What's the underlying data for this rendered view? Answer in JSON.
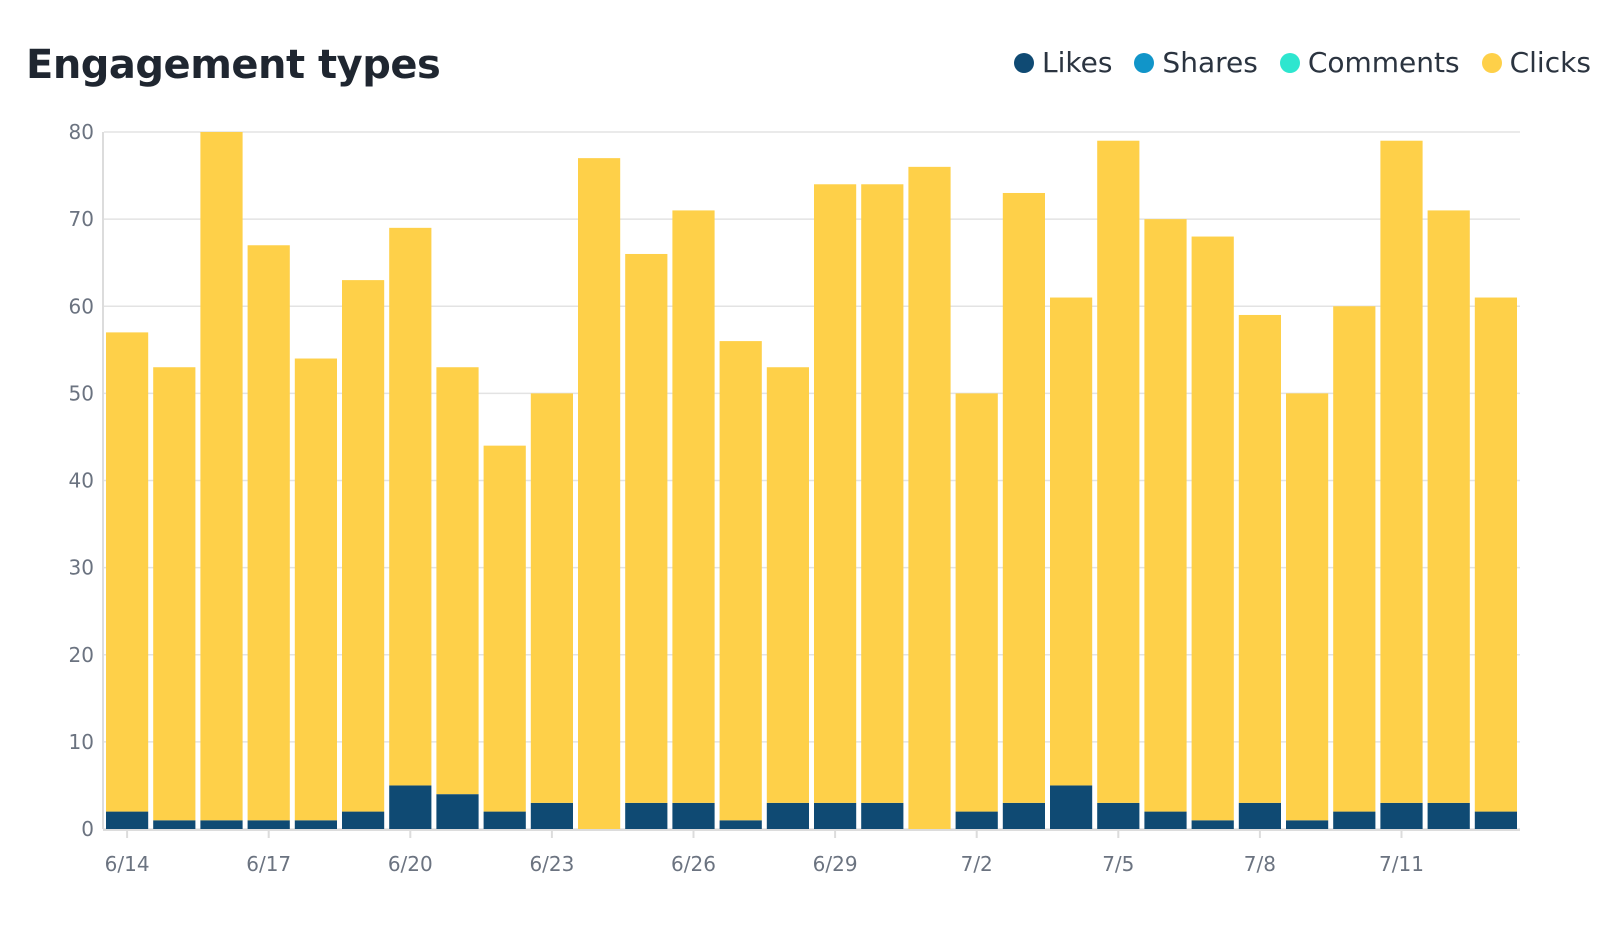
{
  "chart_data": {
    "type": "bar",
    "stacked": true,
    "title": "Engagement types",
    "xlabel": "",
    "ylabel": "",
    "ylim": [
      0,
      80
    ],
    "yticks": [
      0,
      10,
      20,
      30,
      40,
      50,
      60,
      70,
      80
    ],
    "grid": true,
    "legend_position": "top-right",
    "categories": [
      "6/14",
      "6/15",
      "6/16",
      "6/17",
      "6/18",
      "6/19",
      "6/20",
      "6/21",
      "6/22",
      "6/23",
      "6/24",
      "6/25",
      "6/26",
      "6/27",
      "6/28",
      "6/29",
      "6/30",
      "7/1",
      "7/2",
      "7/3",
      "7/4",
      "7/5",
      "7/6",
      "7/7",
      "7/8",
      "7/9",
      "7/10",
      "7/11",
      "7/12",
      "7/13"
    ],
    "xtick_labels": [
      "6/14",
      "6/17",
      "6/20",
      "6/23",
      "6/26",
      "6/29",
      "7/2",
      "7/5",
      "7/8",
      "7/11"
    ],
    "series": [
      {
        "name": "Likes",
        "color": "#0f4a73",
        "values": [
          2,
          1,
          1,
          1,
          1,
          2,
          5,
          4,
          2,
          3,
          0,
          3,
          3,
          1,
          3,
          3,
          3,
          0,
          2,
          3,
          5,
          3,
          2,
          1,
          3,
          1,
          2,
          3,
          3,
          2
        ]
      },
      {
        "name": "Shares",
        "color": "#1195c9",
        "values": [
          0,
          0,
          0,
          0,
          0,
          0,
          0,
          0,
          0,
          0,
          0,
          0,
          0,
          0,
          0,
          0,
          0,
          0,
          0,
          0,
          0,
          0,
          0,
          0,
          0,
          0,
          0,
          0,
          0,
          0
        ]
      },
      {
        "name": "Comments",
        "color": "#2ee6cf",
        "values": [
          0,
          0,
          0,
          0,
          0,
          0,
          0,
          0,
          0,
          0,
          0,
          0,
          0,
          0,
          0,
          0,
          0,
          0,
          0,
          0,
          0,
          0,
          0,
          0,
          0,
          0,
          0,
          0,
          0,
          0
        ]
      },
      {
        "name": "Clicks",
        "color": "#fed049",
        "values": [
          55,
          52,
          79,
          66,
          53,
          61,
          64,
          49,
          42,
          47,
          77,
          63,
          68,
          55,
          50,
          71,
          71,
          76,
          48,
          70,
          56,
          76,
          68,
          67,
          56,
          49,
          58,
          76,
          68,
          59
        ]
      }
    ]
  }
}
